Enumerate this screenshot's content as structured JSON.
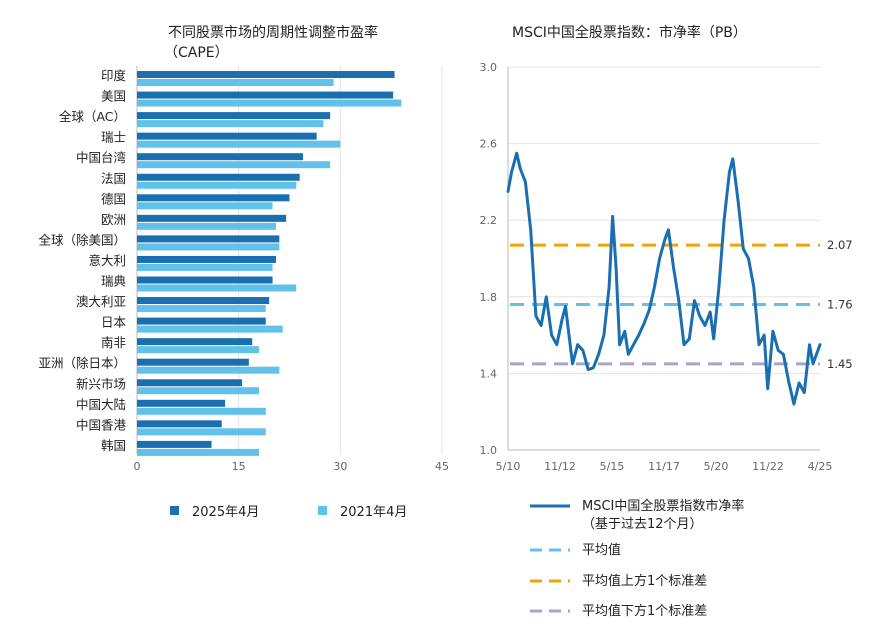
{
  "chart_data": [
    {
      "type": "bar",
      "orientation": "horizontal",
      "title": "不同股票市场的周期性调整市盈率（CAPE）",
      "title_lines": [
        "不同股票市场的周期性调整市盈率",
        "（CAPE）"
      ],
      "categories": [
        "印度",
        "美国",
        "全球（AC）",
        "瑞士",
        "中国台湾",
        "法国",
        "德国",
        "欧洲",
        "全球（除美国）",
        "意大利",
        "瑞典",
        "澳大利亚",
        "日本",
        "南非",
        "亚洲（除日本）",
        "新兴市场",
        "中国大陆",
        "中国香港",
        "韩国"
      ],
      "series": [
        {
          "name": "2025年4月",
          "color": "#1a6fb0",
          "values": [
            38,
            37.8,
            28.5,
            26.5,
            24.5,
            24,
            22.5,
            22,
            21,
            20.5,
            20,
            19.5,
            19,
            17,
            16.5,
            15.5,
            13,
            12.5,
            11
          ]
        },
        {
          "name": "2021年4月",
          "color": "#62c1e9",
          "values": [
            29,
            39,
            27.5,
            30,
            28.5,
            23.5,
            20,
            20.5,
            21,
            20,
            23.5,
            19,
            21.5,
            18,
            21,
            18,
            19,
            19,
            18
          ]
        }
      ],
      "xticks": [
        "0",
        "15",
        "30",
        "45"
      ],
      "xlim": [
        0,
        45
      ],
      "grid": true,
      "legend": "bottom"
    },
    {
      "type": "line",
      "title": "MSCI中国全股票指数：市净率（PB）",
      "yticks": [
        "1.0",
        "1.4",
        "1.8",
        "2.2",
        "2.6",
        "3.0"
      ],
      "ylim": [
        1.0,
        3.0
      ],
      "xticks": [
        "5/10",
        "11/12",
        "5/15",
        "11/17",
        "5/20",
        "11/22",
        "4/25"
      ],
      "xlim": [
        "2010-05",
        "2025-04"
      ],
      "series": [
        {
          "name": "MSCI中国全股票指数市净率",
          "name_lines": [
            "MSCI中国全股票指数市净率",
            "（基于过去12个月）"
          ],
          "color": "#1a6fb0",
          "points": [
            [
              "2010-05",
              2.35
            ],
            [
              "2010-07",
              2.45
            ],
            [
              "2010-10",
              2.55
            ],
            [
              "2010-12",
              2.47
            ],
            [
              "2011-03",
              2.4
            ],
            [
              "2011-06",
              2.15
            ],
            [
              "2011-09",
              1.7
            ],
            [
              "2011-12",
              1.65
            ],
            [
              "2012-03",
              1.8
            ],
            [
              "2012-06",
              1.6
            ],
            [
              "2012-09",
              1.55
            ],
            [
              "2012-12",
              1.68
            ],
            [
              "2013-02",
              1.75
            ],
            [
              "2013-06",
              1.45
            ],
            [
              "2013-09",
              1.55
            ],
            [
              "2013-12",
              1.52
            ],
            [
              "2014-03",
              1.42
            ],
            [
              "2014-06",
              1.43
            ],
            [
              "2014-09",
              1.5
            ],
            [
              "2014-12",
              1.6
            ],
            [
              "2015-03",
              1.85
            ],
            [
              "2015-05",
              2.22
            ],
            [
              "2015-07",
              1.95
            ],
            [
              "2015-09",
              1.55
            ],
            [
              "2015-12",
              1.62
            ],
            [
              "2016-02",
              1.5
            ],
            [
              "2016-05",
              1.55
            ],
            [
              "2016-08",
              1.6
            ],
            [
              "2016-11",
              1.66
            ],
            [
              "2017-02",
              1.73
            ],
            [
              "2017-05",
              1.85
            ],
            [
              "2017-08",
              2.0
            ],
            [
              "2017-11",
              2.1
            ],
            [
              "2018-01",
              2.15
            ],
            [
              "2018-04",
              1.95
            ],
            [
              "2018-07",
              1.78
            ],
            [
              "2018-10",
              1.55
            ],
            [
              "2019-01",
              1.58
            ],
            [
              "2019-04",
              1.78
            ],
            [
              "2019-07",
              1.7
            ],
            [
              "2019-10",
              1.65
            ],
            [
              "2020-01",
              1.72
            ],
            [
              "2020-03",
              1.58
            ],
            [
              "2020-06",
              1.85
            ],
            [
              "2020-09",
              2.2
            ],
            [
              "2020-12",
              2.45
            ],
            [
              "2021-02",
              2.52
            ],
            [
              "2021-05",
              2.3
            ],
            [
              "2021-08",
              2.05
            ],
            [
              "2021-11",
              2.0
            ],
            [
              "2022-02",
              1.85
            ],
            [
              "2022-05",
              1.55
            ],
            [
              "2022-08",
              1.6
            ],
            [
              "2022-10",
              1.32
            ],
            [
              "2023-01",
              1.62
            ],
            [
              "2023-04",
              1.52
            ],
            [
              "2023-07",
              1.5
            ],
            [
              "2023-10",
              1.36
            ],
            [
              "2024-01",
              1.24
            ],
            [
              "2024-04",
              1.35
            ],
            [
              "2024-07",
              1.3
            ],
            [
              "2024-10",
              1.55
            ],
            [
              "2024-12",
              1.45
            ],
            [
              "2025-02",
              1.5
            ],
            [
              "2025-04",
              1.55
            ]
          ]
        }
      ],
      "reference_lines": [
        {
          "name": "平均值",
          "value": 1.76,
          "label": "1.76",
          "color": "#62c1e9"
        },
        {
          "name": "平均值上方1个标准差",
          "value": 2.07,
          "label": "2.07",
          "color": "#f0a30a"
        },
        {
          "name": "平均值下方1个标准差",
          "value": 1.45,
          "label": "1.45",
          "color": "#a8a4cc"
        }
      ],
      "grid": true,
      "legend": "bottom"
    }
  ]
}
